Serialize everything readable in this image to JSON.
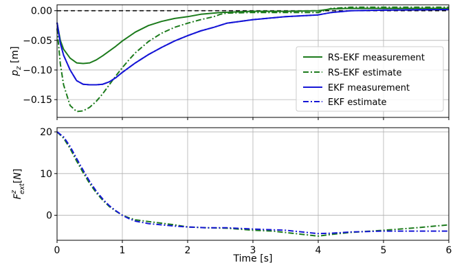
{
  "chart_data": [
    {
      "type": "line",
      "ylabel": "p_z [m]",
      "xlabel": "",
      "xlim": [
        0,
        6
      ],
      "ylim": [
        -0.18,
        0.01
      ],
      "grid": true,
      "x_ticks": [
        0,
        1,
        2,
        3,
        4,
        5,
        6
      ],
      "y_ticks": [
        0.0,
        -0.05,
        -0.1,
        -0.15
      ],
      "y_tick_labels": [
        "0.00",
        "−0.05",
        "−0.10",
        "−0.15"
      ],
      "reference_line": {
        "y": 0.0,
        "style": "dashed",
        "color": "#000000"
      },
      "legend_position": "center-right",
      "series": [
        {
          "name": "RS-EKF measurement",
          "color": "#1b7a1b",
          "style": "solid",
          "points": [
            [
              0,
              -0.02
            ],
            [
              0.05,
              -0.05
            ],
            [
              0.1,
              -0.065
            ],
            [
              0.2,
              -0.08
            ],
            [
              0.3,
              -0.088
            ],
            [
              0.4,
              -0.089
            ],
            [
              0.5,
              -0.088
            ],
            [
              0.6,
              -0.083
            ],
            [
              0.7,
              -0.076
            ],
            [
              0.8,
              -0.068
            ],
            [
              0.9,
              -0.06
            ],
            [
              1.0,
              -0.051
            ],
            [
              1.2,
              -0.036
            ],
            [
              1.4,
              -0.025
            ],
            [
              1.6,
              -0.018
            ],
            [
              1.8,
              -0.013
            ],
            [
              2.0,
              -0.01
            ],
            [
              2.2,
              -0.006
            ],
            [
              2.5,
              -0.003
            ],
            [
              3.0,
              -0.001
            ],
            [
              3.5,
              -0.001
            ],
            [
              4.0,
              0.0
            ],
            [
              4.2,
              0.003
            ],
            [
              4.5,
              0.004
            ],
            [
              5.0,
              0.004
            ],
            [
              5.5,
              0.004
            ],
            [
              6.0,
              0.004
            ]
          ]
        },
        {
          "name": "RS-EKF estimate",
          "color": "#1b7a1b",
          "style": "dashdot",
          "points": [
            [
              0,
              -0.03
            ],
            [
              0.05,
              -0.09
            ],
            [
              0.1,
              -0.125
            ],
            [
              0.2,
              -0.16
            ],
            [
              0.3,
              -0.17
            ],
            [
              0.4,
              -0.169
            ],
            [
              0.5,
              -0.163
            ],
            [
              0.6,
              -0.153
            ],
            [
              0.7,
              -0.14
            ],
            [
              0.8,
              -0.125
            ],
            [
              0.9,
              -0.11
            ],
            [
              1.0,
              -0.096
            ],
            [
              1.1,
              -0.083
            ],
            [
              1.2,
              -0.071
            ],
            [
              1.4,
              -0.052
            ],
            [
              1.6,
              -0.038
            ],
            [
              1.8,
              -0.028
            ],
            [
              2.0,
              -0.021
            ],
            [
              2.2,
              -0.015
            ],
            [
              2.4,
              -0.01
            ],
            [
              2.5,
              -0.006
            ],
            [
              2.6,
              -0.004
            ],
            [
              3.0,
              -0.003
            ],
            [
              3.5,
              -0.003
            ],
            [
              4.0,
              -0.003
            ],
            [
              4.2,
              0.004
            ],
            [
              4.5,
              0.006
            ],
            [
              5.0,
              0.006
            ],
            [
              5.5,
              0.006
            ],
            [
              6.0,
              0.006
            ]
          ]
        },
        {
          "name": "EKF measurement",
          "color": "#1515d6",
          "style": "solid",
          "points": [
            [
              0,
              -0.02
            ],
            [
              0.05,
              -0.055
            ],
            [
              0.1,
              -0.075
            ],
            [
              0.2,
              -0.1
            ],
            [
              0.3,
              -0.118
            ],
            [
              0.4,
              -0.124
            ],
            [
              0.5,
              -0.125
            ],
            [
              0.6,
              -0.125
            ],
            [
              0.7,
              -0.124
            ],
            [
              0.8,
              -0.12
            ],
            [
              0.9,
              -0.113
            ],
            [
              1.0,
              -0.104
            ],
            [
              1.2,
              -0.088
            ],
            [
              1.4,
              -0.074
            ],
            [
              1.6,
              -0.062
            ],
            [
              1.8,
              -0.051
            ],
            [
              2.0,
              -0.042
            ],
            [
              2.2,
              -0.034
            ],
            [
              2.4,
              -0.028
            ],
            [
              2.6,
              -0.021
            ],
            [
              2.8,
              -0.018
            ],
            [
              3.0,
              -0.015
            ],
            [
              3.5,
              -0.01
            ],
            [
              4.0,
              -0.007
            ],
            [
              4.2,
              -0.003
            ],
            [
              4.5,
              0.0
            ],
            [
              5.0,
              0.001
            ],
            [
              6.0,
              0.002
            ]
          ]
        },
        {
          "name": "EKF estimate",
          "color": "#1515d6",
          "style": "dashdot",
          "points": [
            [
              0,
              -0.02
            ],
            [
              0.05,
              -0.055
            ],
            [
              0.1,
              -0.075
            ],
            [
              0.2,
              -0.1
            ],
            [
              0.3,
              -0.118
            ],
            [
              0.4,
              -0.124
            ],
            [
              0.5,
              -0.125
            ],
            [
              0.6,
              -0.125
            ],
            [
              0.7,
              -0.124
            ],
            [
              0.8,
              -0.12
            ],
            [
              0.9,
              -0.113
            ],
            [
              1.0,
              -0.104
            ],
            [
              1.2,
              -0.088
            ],
            [
              1.4,
              -0.074
            ],
            [
              1.6,
              -0.062
            ],
            [
              1.8,
              -0.051
            ],
            [
              2.0,
              -0.042
            ],
            [
              2.2,
              -0.034
            ],
            [
              2.4,
              -0.028
            ],
            [
              2.6,
              -0.021
            ],
            [
              2.8,
              -0.018
            ],
            [
              3.0,
              -0.015
            ],
            [
              3.5,
              -0.01
            ],
            [
              4.0,
              -0.007
            ],
            [
              4.2,
              -0.003
            ],
            [
              4.5,
              0.0
            ],
            [
              5.0,
              0.001
            ],
            [
              6.0,
              0.002
            ]
          ]
        }
      ]
    },
    {
      "type": "line",
      "ylabel": "F_ext^z [N]",
      "xlabel": "Time [s]",
      "xlim": [
        0,
        6
      ],
      "ylim": [
        -6,
        21
      ],
      "grid": true,
      "x_ticks": [
        0,
        1,
        2,
        3,
        4,
        5,
        6
      ],
      "y_ticks": [
        20,
        10,
        0
      ],
      "y_tick_labels": [
        "20",
        "10",
        "0"
      ],
      "series": [
        {
          "name": "RS-EKF estimate",
          "color": "#1b7a1b",
          "style": "dashdot",
          "points": [
            [
              0,
              20
            ],
            [
              0.1,
              18.5
            ],
            [
              0.2,
              16
            ],
            [
              0.3,
              13
            ],
            [
              0.4,
              10.2
            ],
            [
              0.5,
              7.6
            ],
            [
              0.6,
              5.4
            ],
            [
              0.7,
              3.6
            ],
            [
              0.8,
              2.1
            ],
            [
              0.9,
              1.0
            ],
            [
              1.0,
              0.0
            ],
            [
              1.1,
              -0.6
            ],
            [
              1.2,
              -1.1
            ],
            [
              1.4,
              -1.5
            ],
            [
              1.6,
              -1.9
            ],
            [
              1.8,
              -2.3
            ],
            [
              2.0,
              -2.8
            ],
            [
              2.3,
              -3.0
            ],
            [
              2.6,
              -3.1
            ],
            [
              3.0,
              -3.6
            ],
            [
              3.3,
              -3.8
            ],
            [
              3.6,
              -4.3
            ],
            [
              4.0,
              -5.0
            ],
            [
              4.2,
              -4.6
            ],
            [
              4.5,
              -4.1
            ],
            [
              5.0,
              -3.6
            ],
            [
              5.5,
              -3.0
            ],
            [
              6.0,
              -2.3
            ]
          ]
        },
        {
          "name": "EKF estimate",
          "color": "#1515d6",
          "style": "dashdot",
          "points": [
            [
              0,
              20
            ],
            [
              0.1,
              18.8
            ],
            [
              0.2,
              16.5
            ],
            [
              0.3,
              13.6
            ],
            [
              0.4,
              10.8
            ],
            [
              0.5,
              8.1
            ],
            [
              0.6,
              5.8
            ],
            [
              0.7,
              3.9
            ],
            [
              0.8,
              2.3
            ],
            [
              0.9,
              1.1
            ],
            [
              1.0,
              0.0
            ],
            [
              1.1,
              -0.8
            ],
            [
              1.2,
              -1.4
            ],
            [
              1.4,
              -2.0
            ],
            [
              1.6,
              -2.3
            ],
            [
              1.8,
              -2.6
            ],
            [
              2.0,
              -2.8
            ],
            [
              2.3,
              -3.0
            ],
            [
              2.6,
              -3.0
            ],
            [
              3.0,
              -3.3
            ],
            [
              3.5,
              -3.6
            ],
            [
              4.0,
              -4.4
            ],
            [
              4.2,
              -4.3
            ],
            [
              4.5,
              -4.0
            ],
            [
              5.0,
              -3.8
            ],
            [
              5.5,
              -3.8
            ],
            [
              6.0,
              -3.8
            ]
          ]
        }
      ]
    }
  ]
}
